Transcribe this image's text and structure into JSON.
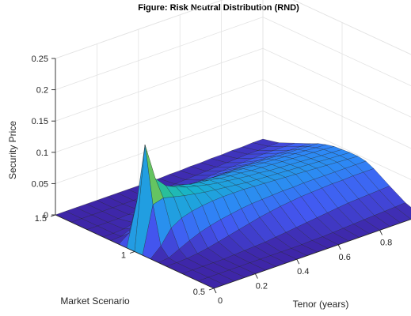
{
  "chart_data": {
    "type": "surface",
    "title": "Figure: Risk Neutral Distribution (RND)",
    "xlabel": "Tenor (years)",
    "ylabel": "Market Scenario",
    "zlabel": "Security Price",
    "xlim": [
      0,
      1
    ],
    "ylim": [
      0.5,
      1.5
    ],
    "zlim": [
      0,
      0.25
    ],
    "x_ticks": [
      "0",
      "0.2",
      "0.4",
      "0.6",
      "0.8"
    ],
    "y_ticks": [
      "0.5",
      "1",
      "1.5"
    ],
    "z_ticks": [
      "0",
      "0.05",
      "0.1",
      "0.15",
      "0.2",
      "0.25"
    ],
    "colormap": [
      "#3e26a8",
      "#4357f1",
      "#2e87f6",
      "#17b2cf",
      "#30c584",
      "#99c43f",
      "#e8c526",
      "#f9fb14"
    ],
    "tenor": [
      0,
      0.05,
      0.1,
      0.15,
      0.2,
      0.25,
      0.3,
      0.35,
      0.4,
      0.45,
      0.5,
      0.55,
      0.6,
      0.65,
      0.7,
      0.75,
      0.8,
      0.85,
      0.9,
      0.95,
      1.0
    ],
    "scenario": [
      0.5,
      0.6,
      0.7,
      0.8,
      0.85,
      0.9,
      0.95,
      1.0,
      1.05,
      1.1,
      1.15,
      1.2,
      1.3,
      1.4,
      1.5
    ],
    "price": [
      [
        0,
        0.0,
        0.0,
        0.0,
        0.0,
        0.0,
        0.0,
        0.0,
        0.0,
        0.0,
        0.0,
        0.0,
        0.0,
        0.0,
        0.0,
        0.0,
        0.0,
        0.0,
        0.0,
        0.0,
        0.0
      ],
      [
        0,
        0.0,
        0.0,
        0.0,
        0.0,
        0.0,
        0.0,
        0.0,
        0.0,
        0.0,
        0.0,
        0.001,
        0.001,
        0.002,
        0.003,
        0.004,
        0.005,
        0.006,
        0.007,
        0.008,
        0.009
      ],
      [
        0,
        0.0,
        0.0,
        0.0,
        0.0,
        0.001,
        0.002,
        0.003,
        0.004,
        0.006,
        0.008,
        0.01,
        0.012,
        0.014,
        0.016,
        0.018,
        0.02,
        0.021,
        0.022,
        0.023,
        0.024
      ],
      [
        0,
        0.0,
        0.001,
        0.003,
        0.006,
        0.01,
        0.014,
        0.018,
        0.022,
        0.026,
        0.029,
        0.032,
        0.034,
        0.036,
        0.037,
        0.038,
        0.039,
        0.039,
        0.04,
        0.04,
        0.04
      ],
      [
        0,
        0.002,
        0.01,
        0.018,
        0.025,
        0.03,
        0.034,
        0.037,
        0.04,
        0.042,
        0.043,
        0.044,
        0.045,
        0.045,
        0.046,
        0.046,
        0.046,
        0.046,
        0.046,
        0.046,
        0.046
      ],
      [
        0,
        0.015,
        0.038,
        0.048,
        0.053,
        0.056,
        0.058,
        0.059,
        0.059,
        0.059,
        0.058,
        0.057,
        0.056,
        0.055,
        0.054,
        0.053,
        0.052,
        0.051,
        0.05,
        0.049,
        0.048
      ],
      [
        0,
        0.075,
        0.08,
        0.076,
        0.072,
        0.069,
        0.066,
        0.064,
        0.062,
        0.06,
        0.058,
        0.057,
        0.056,
        0.055,
        0.054,
        0.053,
        0.052,
        0.051,
        0.05,
        0.049,
        0.048
      ],
      [
        0,
        0.165,
        0.105,
        0.088,
        0.08,
        0.074,
        0.07,
        0.066,
        0.063,
        0.061,
        0.059,
        0.057,
        0.056,
        0.054,
        0.053,
        0.052,
        0.051,
        0.05,
        0.049,
        0.048,
        0.047
      ],
      [
        0,
        0.07,
        0.085,
        0.08,
        0.075,
        0.071,
        0.067,
        0.064,
        0.062,
        0.059,
        0.057,
        0.056,
        0.054,
        0.053,
        0.052,
        0.051,
        0.05,
        0.049,
        0.048,
        0.047,
        0.046
      ],
      [
        0,
        0.012,
        0.04,
        0.05,
        0.054,
        0.056,
        0.056,
        0.056,
        0.055,
        0.054,
        0.053,
        0.052,
        0.051,
        0.05,
        0.049,
        0.048,
        0.047,
        0.046,
        0.045,
        0.044,
        0.043
      ],
      [
        0,
        0.001,
        0.008,
        0.018,
        0.027,
        0.033,
        0.037,
        0.04,
        0.042,
        0.043,
        0.044,
        0.044,
        0.044,
        0.044,
        0.043,
        0.043,
        0.042,
        0.041,
        0.041,
        0.04,
        0.039
      ],
      [
        0,
        0.0,
        0.001,
        0.005,
        0.01,
        0.015,
        0.02,
        0.024,
        0.027,
        0.03,
        0.032,
        0.033,
        0.034,
        0.035,
        0.035,
        0.035,
        0.035,
        0.035,
        0.034,
        0.034,
        0.033
      ],
      [
        0,
        0.0,
        0.0,
        0.0,
        0.001,
        0.002,
        0.004,
        0.006,
        0.009,
        0.011,
        0.013,
        0.015,
        0.017,
        0.018,
        0.019,
        0.02,
        0.021,
        0.022,
        0.022,
        0.022,
        0.022
      ],
      [
        0,
        0.0,
        0.0,
        0.0,
        0.0,
        0.0,
        0.0,
        0.001,
        0.001,
        0.002,
        0.003,
        0.004,
        0.005,
        0.006,
        0.007,
        0.008,
        0.009,
        0.01,
        0.01,
        0.011,
        0.011
      ],
      [
        0,
        0.0,
        0.0,
        0.0,
        0.0,
        0.0,
        0.0,
        0.0,
        0.0,
        0.0,
        0.0,
        0.001,
        0.001,
        0.002,
        0.002,
        0.003,
        0.003,
        0.004,
        0.004,
        0.005,
        0.005
      ]
    ]
  }
}
